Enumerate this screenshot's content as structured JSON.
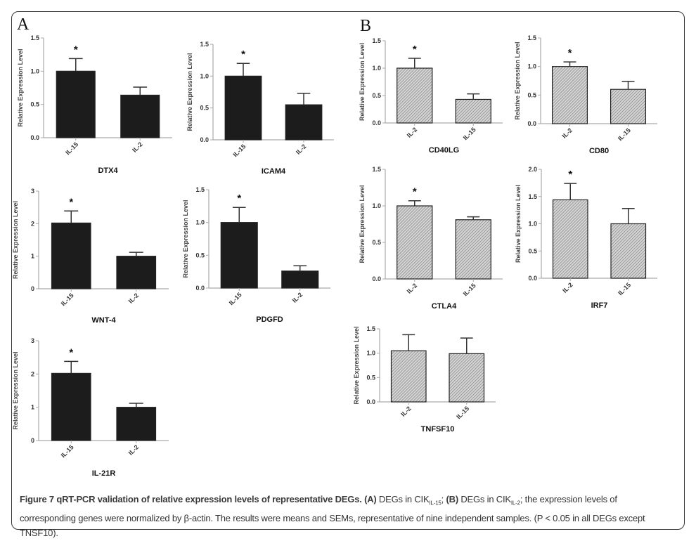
{
  "panels": {
    "a": "A",
    "b": "B"
  },
  "colors": {
    "panel_a_bar": "#1c1c1c",
    "panel_b_bar": "#bdbdbd",
    "axis": "#aaaaaa"
  },
  "chart_data": [
    {
      "panel": "A",
      "type": "bar",
      "title": "DTX4",
      "ylabel": "Relative Expression Level",
      "ylim": [
        0,
        1.5
      ],
      "yticks": [
        "0.0",
        "0.5",
        "1.0",
        "1.5"
      ],
      "ytick_values": [
        0,
        0.5,
        1.0,
        1.5
      ],
      "categories": [
        "IL-15",
        "IL-2"
      ],
      "values": [
        1.0,
        0.64
      ],
      "errors": [
        0.19,
        0.12
      ],
      "significant": [
        true,
        false
      ],
      "annotation": "*"
    },
    {
      "panel": "A",
      "type": "bar",
      "title": "ICAM4",
      "ylabel": "Relative Expression Level",
      "ylim": [
        0,
        1.5
      ],
      "yticks": [
        "0.0",
        "0.5",
        "1.0",
        "1.5"
      ],
      "ytick_values": [
        0,
        0.5,
        1.0,
        1.5
      ],
      "categories": [
        "IL-15",
        "IL-2"
      ],
      "values": [
        1.0,
        0.55
      ],
      "errors": [
        0.2,
        0.18
      ],
      "significant": [
        true,
        false
      ],
      "annotation": "*"
    },
    {
      "panel": "A",
      "type": "bar",
      "title": "WNT-4",
      "ylabel": "Relative Expression Level",
      "ylim": [
        0,
        3
      ],
      "yticks": [
        "0",
        "1",
        "2",
        "3"
      ],
      "ytick_values": [
        0,
        1,
        2,
        3
      ],
      "categories": [
        "IL-15",
        "IL-2"
      ],
      "values": [
        2.02,
        1.0
      ],
      "errors": [
        0.37,
        0.12
      ],
      "significant": [
        true,
        false
      ],
      "annotation": "*"
    },
    {
      "panel": "A",
      "type": "bar",
      "title": "PDGFD",
      "ylabel": "Relative Expression Level",
      "ylim": [
        0,
        1.5
      ],
      "yticks": [
        "0.0",
        "0.5",
        "1.0",
        "1.5"
      ],
      "ytick_values": [
        0,
        0.5,
        1.0,
        1.5
      ],
      "categories": [
        "IL-15",
        "IL-2"
      ],
      "values": [
        1.0,
        0.26
      ],
      "errors": [
        0.23,
        0.08
      ],
      "significant": [
        true,
        false
      ],
      "annotation": "*"
    },
    {
      "panel": "A",
      "type": "bar",
      "title": "IL-21R",
      "ylabel": "Relative Expression Level",
      "ylim": [
        0,
        3
      ],
      "yticks": [
        "0",
        "1",
        "2",
        "3"
      ],
      "ytick_values": [
        0,
        1,
        2,
        3
      ],
      "categories": [
        "IL-15",
        "IL-2"
      ],
      "values": [
        2.02,
        1.0
      ],
      "errors": [
        0.36,
        0.12
      ],
      "significant": [
        true,
        false
      ],
      "annotation": "*"
    },
    {
      "panel": "B",
      "type": "bar",
      "title": "CD40LG",
      "ylabel": "Relative Expression Level",
      "ylim": [
        0,
        1.5
      ],
      "yticks": [
        "0.0",
        "0.5",
        "1.0",
        "1.5"
      ],
      "ytick_values": [
        0,
        0.5,
        1.0,
        1.5
      ],
      "categories": [
        "IL-2",
        "IL-15"
      ],
      "values": [
        1.0,
        0.43
      ],
      "errors": [
        0.18,
        0.1
      ],
      "significant": [
        true,
        false
      ],
      "annotation": "*"
    },
    {
      "panel": "B",
      "type": "bar",
      "title": "CD80",
      "ylabel": "Relative Expression Level",
      "ylim": [
        0,
        1.5
      ],
      "yticks": [
        "0.0",
        "0.5",
        "1.0",
        "1.5"
      ],
      "ytick_values": [
        0,
        0.5,
        1.0,
        1.5
      ],
      "categories": [
        "IL-2",
        "IL-15"
      ],
      "values": [
        1.0,
        0.6
      ],
      "errors": [
        0.08,
        0.14
      ],
      "significant": [
        true,
        false
      ],
      "annotation": "*"
    },
    {
      "panel": "B",
      "type": "bar",
      "title": "CTLA4",
      "ylabel": "Relative Expression Level",
      "ylim": [
        0,
        1.5
      ],
      "yticks": [
        "0.0",
        "0.5",
        "1.0",
        "1.5"
      ],
      "ytick_values": [
        0,
        0.5,
        1.0,
        1.5
      ],
      "categories": [
        "IL-2",
        "IL-15"
      ],
      "values": [
        1.0,
        0.81
      ],
      "errors": [
        0.07,
        0.04
      ],
      "significant": [
        true,
        false
      ],
      "annotation": "*"
    },
    {
      "panel": "B",
      "type": "bar",
      "title": "IRF7",
      "ylabel": "Relative Expression Level",
      "ylim": [
        0,
        2
      ],
      "yticks": [
        "0.0",
        "0.5",
        "1.0",
        "1.5",
        "2.0"
      ],
      "ytick_values": [
        0,
        0.5,
        1.0,
        1.5,
        2.0
      ],
      "categories": [
        "IL-2",
        "IL-15"
      ],
      "values": [
        1.44,
        1.0
      ],
      "errors": [
        0.3,
        0.28
      ],
      "significant": [
        true,
        false
      ],
      "annotation": "*"
    },
    {
      "panel": "B",
      "type": "bar",
      "title": "TNFSF10",
      "ylabel": "Relative Expression Level",
      "ylim": [
        0,
        1.5
      ],
      "yticks": [
        "0.0",
        "0.5",
        "1.0",
        "1.5"
      ],
      "ytick_values": [
        0,
        0.5,
        1.0,
        1.5
      ],
      "categories": [
        "IL-2",
        "IL-15"
      ],
      "values": [
        1.05,
        0.99
      ],
      "errors": [
        0.33,
        0.32
      ],
      "significant": [
        false,
        false
      ],
      "annotation": ""
    }
  ],
  "caption": {
    "bold": "Figure 7 qRT-PCR validation of relative expression levels of representative DEGs.",
    "a_label": "(A)",
    "a_text": " DEGs in CIK",
    "a_sub": "IL-15",
    "sep": "; ",
    "b_label": "(B)",
    "b_text": " DEGs in CIK",
    "b_sub": "IL-2",
    "rest": "; the expression levels of corresponding genes were normalized by β-actin. The results were means and SEMs, representative of nine independent samples. (P < 0.05 in all DEGs except TNSF10)."
  }
}
